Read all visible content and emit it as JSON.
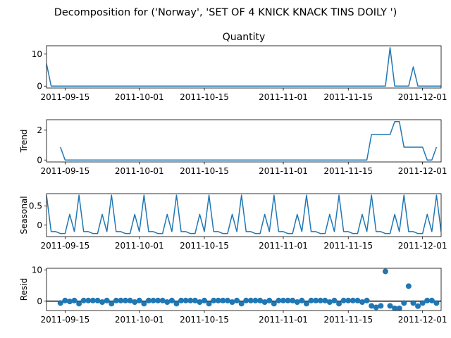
{
  "figure_title": "Decomposition for ('Norway', 'SET OF 4 KNICK KNACK TINS DOILY ')",
  "colors": {
    "line": "#1f77b4",
    "marker": "#1f77b4",
    "axis": "#000000",
    "zero_line": "#000000"
  },
  "chart_data": [
    {
      "type": "line",
      "title": "Quantity",
      "ylabel": "",
      "x": {
        "start": "2011-09-11",
        "end": "2011-12-05"
      },
      "yticks": [
        0,
        10
      ],
      "ylim": [
        -0.6,
        12.6
      ],
      "values": [
        7,
        0,
        0,
        0,
        0,
        0,
        0,
        0,
        0,
        0,
        0,
        0,
        0,
        0,
        0,
        0,
        0,
        0,
        0,
        0,
        0,
        0,
        0,
        0,
        0,
        0,
        0,
        0,
        0,
        0,
        0,
        0,
        0,
        0,
        0,
        0,
        0,
        0,
        0,
        0,
        0,
        0,
        0,
        0,
        0,
        0,
        0,
        0,
        0,
        0,
        0,
        0,
        0,
        0,
        0,
        0,
        0,
        0,
        0,
        0,
        0,
        0,
        0,
        0,
        0,
        0,
        0,
        0,
        0,
        0,
        0,
        0,
        0,
        0,
        12,
        0,
        0,
        0,
        0,
        6,
        0,
        0,
        0,
        0,
        0,
        0,
        0,
        6
      ]
    },
    {
      "type": "line",
      "title": "",
      "ylabel": "Trend",
      "x": {
        "start": "2011-09-11",
        "end": "2011-12-05"
      },
      "yticks": [
        0,
        2
      ],
      "ylim": [
        -0.13,
        2.7
      ],
      "values": [
        null,
        null,
        null,
        0.86,
        0,
        0,
        0,
        0,
        0,
        0,
        0,
        0,
        0,
        0,
        0,
        0,
        0,
        0,
        0,
        0,
        0,
        0,
        0,
        0,
        0,
        0,
        0,
        0,
        0,
        0,
        0,
        0,
        0,
        0,
        0,
        0,
        0,
        0,
        0,
        0,
        0,
        0,
        0,
        0,
        0,
        0,
        0,
        0,
        0,
        0,
        0,
        0,
        0,
        0,
        0,
        0,
        0,
        0,
        0,
        0,
        0,
        0,
        0,
        0,
        0,
        0,
        0,
        0,
        0,
        0,
        1.71,
        1.71,
        1.71,
        1.71,
        1.71,
        2.57,
        2.57,
        0.86,
        0.86,
        0.86,
        0.86,
        0.86,
        0,
        0,
        0.86,
        null,
        null,
        null
      ]
    },
    {
      "type": "line",
      "title": "",
      "ylabel": "Seasonal",
      "x": {
        "start": "2011-09-11",
        "end": "2011-12-05"
      },
      "yticks": [
        0.0,
        0.5
      ],
      "ylim": [
        -0.3,
        0.82
      ],
      "values": [
        0.78,
        -0.17,
        -0.17,
        -0.22,
        -0.22,
        0.28,
        -0.17,
        0.78,
        -0.17,
        -0.17,
        -0.22,
        -0.22,
        0.28,
        -0.17,
        0.78,
        -0.17,
        -0.17,
        -0.22,
        -0.22,
        0.28,
        -0.17,
        0.78,
        -0.17,
        -0.17,
        -0.22,
        -0.22,
        0.28,
        -0.17,
        0.78,
        -0.17,
        -0.17,
        -0.22,
        -0.22,
        0.28,
        -0.17,
        0.78,
        -0.17,
        -0.17,
        -0.22,
        -0.22,
        0.28,
        -0.17,
        0.78,
        -0.17,
        -0.17,
        -0.22,
        -0.22,
        0.28,
        -0.17,
        0.78,
        -0.17,
        -0.17,
        -0.22,
        -0.22,
        0.28,
        -0.17,
        0.78,
        -0.17,
        -0.17,
        -0.22,
        -0.22,
        0.28,
        -0.17,
        0.78,
        -0.17,
        -0.17,
        -0.22,
        -0.22,
        0.28,
        -0.17,
        0.78,
        -0.17,
        -0.17,
        -0.22,
        -0.22,
        0.28,
        -0.17,
        0.78,
        -0.17,
        -0.17,
        -0.22,
        -0.22,
        0.28,
        -0.17,
        0.78,
        -0.17,
        -0.17,
        -0.22
      ]
    },
    {
      "type": "scatter",
      "title": "",
      "ylabel": "Resid",
      "x": {
        "start": "2011-09-11",
        "end": "2011-12-05"
      },
      "yticks": [
        0,
        10
      ],
      "ylim": [
        -3,
        10.5
      ],
      "zero_line": true,
      "values": [
        null,
        null,
        null,
        -0.6,
        0.2,
        -0.1,
        0.2,
        -0.8,
        0.2,
        0.2,
        0.2,
        0.2,
        -0.3,
        0.2,
        -0.8,
        0.2,
        0.2,
        0.2,
        0.2,
        -0.3,
        0.2,
        -0.8,
        0.2,
        0.2,
        0.2,
        0.2,
        -0.3,
        0.2,
        -0.8,
        0.2,
        0.2,
        0.2,
        0.2,
        -0.3,
        0.2,
        -0.8,
        0.2,
        0.2,
        0.2,
        0.2,
        -0.3,
        0.2,
        -0.8,
        0.2,
        0.2,
        0.2,
        0.2,
        -0.3,
        0.2,
        -0.8,
        0.2,
        0.2,
        0.2,
        0.2,
        -0.3,
        0.2,
        -0.8,
        0.2,
        0.2,
        0.2,
        0.2,
        -0.3,
        0.2,
        -0.8,
        0.2,
        0.2,
        0.2,
        0.2,
        -0.3,
        0.2,
        -1.5,
        -2,
        -1.5,
        9.5,
        -1.5,
        -2.3,
        -2.3,
        -0.6,
        4.8,
        -0.6,
        -1.6,
        -0.6,
        0.2,
        0.2,
        -0.6,
        null,
        null,
        null
      ]
    }
  ],
  "xticks": [
    "2011-09-15",
    "2011-10-01",
    "2011-10-15",
    "2011-11-01",
    "2011-11-15",
    "2011-12-01"
  ]
}
